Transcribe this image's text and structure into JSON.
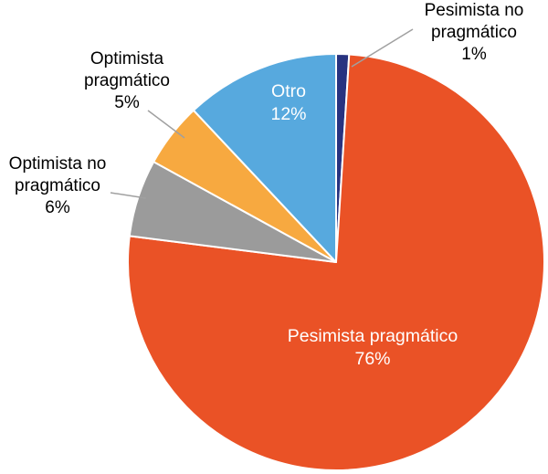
{
  "chart_data": {
    "type": "pie",
    "title": "",
    "direction": "clockwise",
    "start_angle_deg": 0,
    "legend": "none",
    "slices": [
      {
        "label": "Pesimista no pragmático",
        "value": 1,
        "pct_label": "1%",
        "color": "#283380",
        "label_position": "outside-top-right"
      },
      {
        "label": "Pesimista pragmático",
        "value": 76,
        "pct_label": "76%",
        "color": "#EA5226",
        "label_position": "inside"
      },
      {
        "label": "Optimista no pragmático",
        "value": 6,
        "pct_label": "6%",
        "color": "#9B9B9B",
        "label_position": "outside-left"
      },
      {
        "label": "Optimista pragmático",
        "value": 5,
        "pct_label": "5%",
        "color": "#F7A940",
        "label_position": "outside-top-left"
      },
      {
        "label": "Otro",
        "value": 12,
        "pct_label": "12%",
        "color": "#57A9DE",
        "label_position": "inside"
      }
    ],
    "colors": {
      "leader_line": "#A0A0A0",
      "slice_separator": "#FFFFFF"
    }
  }
}
